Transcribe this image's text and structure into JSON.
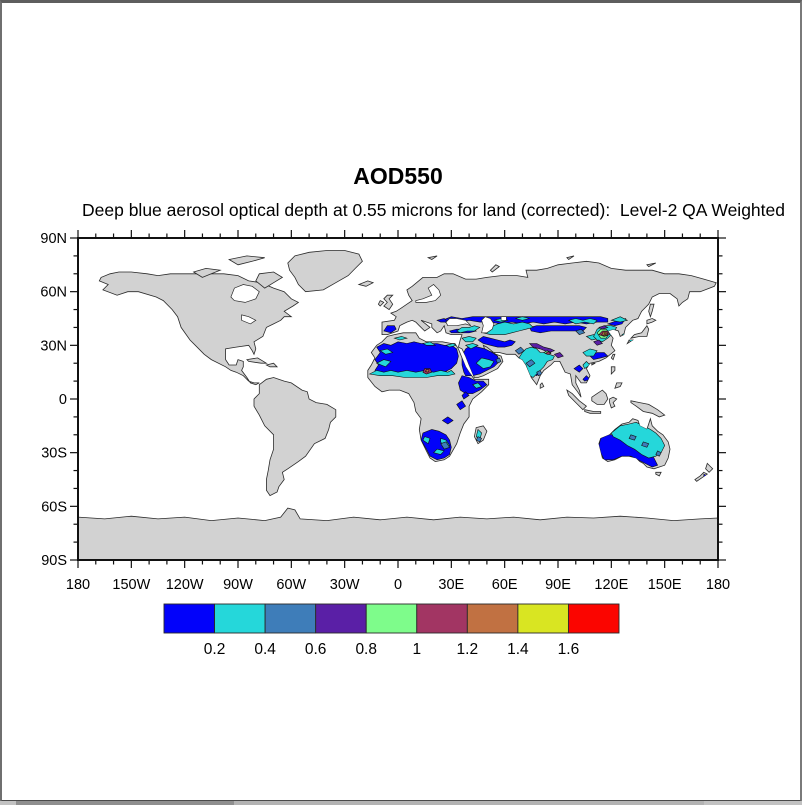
{
  "figure": {
    "title": "AOD550",
    "subtitle": "Deep blue aerosol optical depth at 0.55 microns for land (corrected):  Level-2 QA Weighted"
  },
  "chart_data": {
    "type": "heatmap",
    "title": "AOD550",
    "subtitle": "Deep blue aerosol optical depth at 0.55 microns for land (corrected):  Level-2 QA Weighted",
    "projection": "equirectangular world map, filled contours over land",
    "xlim": [
      -180,
      180
    ],
    "ylim": [
      -90,
      90
    ],
    "x_tick_labels": [
      "180",
      "150W",
      "120W",
      "90W",
      "60W",
      "30W",
      "0",
      "30E",
      "60E",
      "90E",
      "120E",
      "150E",
      "180"
    ],
    "y_tick_labels": [
      "90N",
      "60N",
      "30N",
      "0",
      "30S",
      "60S",
      "90S"
    ],
    "major_tick_deg": 30,
    "minor_tick_deg": 10,
    "grid": false,
    "colors": {
      "land": "#d2d2d2",
      "coast": "#2a2a2a",
      "ocean": "#ffffff",
      "frame": "#111111"
    },
    "colorbar": {
      "position": "bottom",
      "tick_labels": [
        "0.2",
        "0.4",
        "0.6",
        "0.8",
        "1",
        "1.2",
        "1.4",
        "1.6"
      ],
      "colors": [
        "#0202fa",
        "#25d7da",
        "#3e7db9",
        "#5a1fa6",
        "#7efc8b",
        "#a23563",
        "#c17142",
        "#d9e522",
        "#fb0500"
      ]
    },
    "patches": [
      {
        "c": 0,
        "pts": [
          -13,
          16,
          -11,
          19,
          -13,
          22,
          -10,
          26,
          -12,
          29,
          -8,
          31,
          -4,
          30,
          0,
          32,
          5,
          31,
          9,
          32,
          13,
          31,
          18,
          31,
          22,
          31,
          26,
          30,
          30,
          30,
          33,
          28,
          34,
          24,
          33,
          20,
          30,
          17,
          26,
          15,
          22,
          14,
          18,
          14,
          14,
          13,
          10,
          13,
          5,
          13,
          0,
          14,
          -5,
          14,
          -9,
          14
        ]
      },
      {
        "c": 0,
        "pts": [
          37,
          15,
          36,
          19,
          36,
          24,
          38,
          28,
          41,
          30,
          45,
          29,
          49,
          28,
          53,
          26,
          56,
          24,
          57,
          21,
          54,
          18,
          50,
          16,
          46,
          14,
          42,
          13,
          38,
          13
        ]
      },
      {
        "c": 0,
        "pts": [
          35,
          5,
          34,
          9,
          36,
          13,
          40,
          12,
          44,
          10,
          48,
          10,
          50,
          8,
          46,
          5,
          42,
          3,
          38,
          3
        ]
      },
      {
        "c": 0,
        "pts": [
          33,
          -3,
          36,
          -1,
          38,
          -4,
          35,
          -6
        ]
      },
      {
        "c": 0,
        "pts": [
          14,
          -19,
          13,
          -23,
          16,
          -28,
          18,
          -32,
          22,
          -34,
          26,
          -33,
          29,
          -31,
          30,
          -27,
          29,
          -23,
          27,
          -20,
          23,
          -18,
          19,
          -17
        ]
      },
      {
        "c": 0,
        "pts": [
          45,
          33,
          48,
          35,
          52,
          34,
          56,
          33,
          60,
          32,
          63,
          33,
          66,
          32,
          64,
          30,
          60,
          29,
          56,
          29,
          52,
          30,
          48,
          31
        ]
      },
      {
        "c": 0,
        "pts": [
          25,
          44,
          30,
          46,
          36,
          45,
          42,
          46,
          48,
          46,
          54,
          46,
          60,
          46,
          66,
          46,
          72,
          46,
          78,
          46,
          84,
          46,
          90,
          46,
          96,
          46,
          102,
          46,
          108,
          46,
          114,
          46,
          118,
          45,
          118,
          43,
          112,
          43,
          106,
          42,
          100,
          43,
          94,
          42,
          88,
          43,
          82,
          42,
          76,
          43,
          70,
          42,
          64,
          43,
          58,
          42,
          52,
          43,
          46,
          43,
          40,
          44,
          34,
          43,
          28,
          42
        ]
      },
      {
        "c": 0,
        "pts": [
          74,
          40,
          78,
          41,
          84,
          41,
          90,
          41,
          96,
          41,
          102,
          41,
          106,
          40,
          104,
          38,
          98,
          38,
          92,
          38,
          86,
          38,
          80,
          37,
          75,
          38
        ]
      },
      {
        "c": 0,
        "pts": [
          -8,
          38,
          -6,
          41,
          -2,
          41,
          -1,
          39,
          -4,
          37
        ]
      },
      {
        "c": 0,
        "pts": [
          29,
          38,
          33,
          39,
          38,
          39,
          42,
          39,
          44,
          38,
          40,
          37,
          35,
          37,
          30,
          37
        ]
      },
      {
        "c": 0,
        "pts": [
          114,
          -22,
          113,
          -26,
          114,
          -30,
          116,
          -34,
          121,
          -34,
          126,
          -32,
          131,
          -32,
          135,
          -34,
          139,
          -36,
          143,
          -38,
          146,
          -37,
          144,
          -33,
          141,
          -29,
          137,
          -26,
          133,
          -24,
          128,
          -22,
          123,
          -20,
          118,
          -20
        ]
      },
      {
        "c": 0,
        "pts": [
          70,
          24,
          73,
          26,
          76,
          27,
          75,
          24,
          72,
          22
        ]
      },
      {
        "c": 0,
        "pts": [
          75,
          15,
          78,
          17,
          80,
          15,
          78,
          13
        ]
      },
      {
        "c": 0,
        "pts": [
          99,
          17,
          102,
          19,
          104,
          17,
          102,
          15
        ]
      },
      {
        "c": 0,
        "pts": [
          104,
          11,
          106,
          13,
          108,
          11,
          105,
          10
        ]
      },
      {
        "c": 0,
        "pts": [
          118,
          42,
          124,
          44,
          128,
          45,
          126,
          42,
          122,
          41
        ]
      },
      {
        "c": 0,
        "pts": [
          22,
          44,
          26,
          45,
          28,
          43,
          24,
          43
        ]
      },
      {
        "c": 0,
        "pts": [
          172,
          -42,
          174,
          -43,
          172,
          -44
        ]
      },
      {
        "c": 0,
        "pts": [
          25,
          -12,
          28,
          -10,
          31,
          -12,
          28,
          -14
        ]
      },
      {
        "c": 0,
        "pts": [
          36,
          2,
          38,
          4,
          40,
          2,
          37,
          0
        ]
      },
      {
        "c": 0,
        "pts": [
          108,
          24,
          112,
          26,
          116,
          26,
          118,
          24,
          114,
          23,
          110,
          22
        ]
      },
      {
        "c": 1,
        "pts": [
          -16,
          14,
          -12,
          16,
          -8,
          15,
          -4,
          16,
          0,
          15,
          5,
          16,
          10,
          15,
          15,
          16,
          20,
          15,
          24,
          16,
          28,
          15,
          30,
          16,
          32,
          14,
          28,
          13,
          22,
          13,
          16,
          12,
          10,
          12,
          4,
          12,
          -3,
          13,
          -10,
          13
        ]
      },
      {
        "c": 1,
        "pts": [
          -12,
          20,
          -8,
          22,
          -4,
          21,
          -7,
          18
        ]
      },
      {
        "c": 1,
        "pts": [
          -10,
          27,
          -6,
          28,
          -3,
          26,
          -7,
          25
        ]
      },
      {
        "c": 1,
        "pts": [
          -2,
          34,
          2,
          35,
          5,
          34,
          1,
          33
        ]
      },
      {
        "c": 1,
        "pts": [
          14,
          31,
          18,
          32,
          21,
          30,
          16,
          30
        ]
      },
      {
        "c": 1,
        "pts": [
          27,
          30,
          31,
          31,
          33,
          30,
          29,
          29
        ]
      },
      {
        "c": 1,
        "pts": [
          44,
          20,
          47,
          23,
          51,
          22,
          54,
          21,
          52,
          18,
          48,
          17
        ]
      },
      {
        "c": 1,
        "pts": [
          38,
          30,
          42,
          31,
          45,
          30,
          41,
          28
        ]
      },
      {
        "c": 1,
        "pts": [
          48,
          37,
          52,
          40,
          56,
          42,
          60,
          43,
          65,
          42,
          70,
          43,
          74,
          42,
          76,
          40,
          72,
          39,
          68,
          38,
          64,
          37,
          60,
          36,
          56,
          36,
          52,
          36
        ]
      },
      {
        "c": 1,
        "pts": [
          54,
          44,
          58,
          45,
          62,
          44,
          58,
          43
        ]
      },
      {
        "c": 1,
        "pts": [
          36,
          34,
          40,
          35,
          44,
          34,
          42,
          32,
          38,
          32
        ]
      },
      {
        "c": 1,
        "pts": [
          68,
          23,
          70,
          26,
          72,
          28,
          75,
          29,
          78,
          28,
          80,
          26,
          82,
          26,
          85,
          25,
          88,
          24,
          87,
          22,
          84,
          21,
          82,
          18,
          80,
          16,
          78,
          14,
          76,
          12,
          74,
          13,
          73,
          16,
          72,
          19,
          70,
          21
        ]
      },
      {
        "c": 1,
        "pts": [
          96,
          44,
          100,
          45,
          104,
          44,
          108,
          45,
          112,
          44,
          110,
          42,
          105,
          43,
          100,
          42
        ]
      },
      {
        "c": 1,
        "pts": [
          106,
          35,
          110,
          36,
          113,
          34,
          109,
          33
        ]
      },
      {
        "c": 1,
        "pts": [
          112,
          39,
          116,
          41,
          120,
          41,
          123,
          40,
          121,
          37,
          118,
          34,
          115,
          32,
          112,
          33,
          110,
          35
        ]
      },
      {
        "c": 1,
        "pts": [
          104,
          26,
          108,
          28,
          112,
          27,
          110,
          24,
          106,
          24
        ]
      },
      {
        "c": 1,
        "pts": [
          120,
          44,
          125,
          46,
          129,
          44,
          125,
          43
        ]
      },
      {
        "c": 1,
        "pts": [
          120,
          -19,
          125,
          -15,
          130,
          -14,
          134,
          -13,
          138,
          -15,
          142,
          -17,
          145,
          -19,
          148,
          -22,
          150,
          -26,
          148,
          -30,
          145,
          -32,
          141,
          -33,
          137,
          -31,
          133,
          -28,
          129,
          -26,
          125,
          -23,
          121,
          -21
        ]
      },
      {
        "c": 1,
        "pts": [
          15,
          -21,
          18,
          -22,
          17,
          -25,
          14,
          -23
        ]
      },
      {
        "c": 1,
        "pts": [
          20,
          -30,
          24,
          -31,
          26,
          -29,
          22,
          -28
        ]
      },
      {
        "c": 1,
        "pts": [
          24,
          -22,
          27,
          -23,
          29,
          -26,
          26,
          -27,
          24,
          -24
        ]
      },
      {
        "c": 1,
        "pts": [
          45,
          -17,
          47,
          -19,
          46,
          -23,
          44,
          -21
        ]
      },
      {
        "c": 1,
        "pts": [
          33,
          38,
          36,
          40,
          40,
          40,
          43,
          41,
          46,
          40,
          43,
          38,
          39,
          38,
          35,
          37
        ]
      },
      {
        "c": 1,
        "pts": [
          66,
          45,
          70,
          46,
          74,
          45,
          70,
          44
        ]
      },
      {
        "c": 1,
        "pts": [
          126,
          36,
          128,
          37,
          130,
          36,
          127,
          35
        ]
      },
      {
        "c": 1,
        "pts": [
          130,
          33,
          132,
          34,
          133,
          33,
          131,
          32
        ]
      },
      {
        "c": 1,
        "pts": [
          104,
          19,
          106,
          21,
          108,
          19,
          105,
          17
        ]
      },
      {
        "c": 1,
        "pts": [
          42,
          8,
          45,
          9,
          47,
          7,
          44,
          6
        ]
      },
      {
        "c": 2,
        "pts": [
          24,
          -25,
          27,
          -24,
          29,
          -27,
          26,
          -28
        ]
      },
      {
        "c": 2,
        "pts": [
          45,
          -21,
          47,
          -22,
          46,
          -24,
          44,
          -23
        ]
      },
      {
        "c": 2,
        "pts": [
          72,
          20,
          75,
          22,
          77,
          20,
          74,
          18
        ]
      },
      {
        "c": 2,
        "pts": [
          78,
          15,
          80,
          16,
          81,
          14,
          79,
          13
        ]
      },
      {
        "c": 2,
        "pts": [
          55,
          22,
          57,
          23,
          58,
          21,
          56,
          20
        ]
      },
      {
        "c": 2,
        "pts": [
          131,
          -20,
          134,
          -21,
          133,
          -23,
          130,
          -22
        ]
      },
      {
        "c": 2,
        "pts": [
          138,
          -24,
          141,
          -25,
          140,
          -27,
          137,
          -26
        ]
      },
      {
        "c": 2,
        "pts": [
          146,
          -29,
          148,
          -30,
          147,
          -32,
          145,
          -31
        ]
      },
      {
        "c": 2,
        "pts": [
          66,
          27,
          69,
          29,
          71,
          27,
          68,
          25
        ]
      },
      {
        "c": 2,
        "pts": [
          100,
          38,
          103,
          39,
          105,
          37,
          102,
          36
        ]
      },
      {
        "c": 3,
        "pts": [
          74,
          31,
          78,
          31,
          82,
          29,
          86,
          28,
          88,
          27,
          85,
          26,
          80,
          28,
          76,
          29
        ]
      },
      {
        "c": 3,
        "pts": [
          88,
          25,
          91,
          26,
          93,
          24,
          90,
          23
        ]
      },
      {
        "c": 3,
        "pts": [
          110,
          32,
          113,
          33,
          115,
          31,
          112,
          30
        ]
      },
      {
        "c": 3,
        "pts": [
          113,
          40,
          116,
          41,
          118,
          40,
          115,
          39
        ]
      },
      {
        "c": 4,
        "pts": [
          112,
          37,
          114,
          39,
          117,
          39,
          119,
          37,
          117,
          34,
          114,
          34
        ]
      },
      {
        "c": 4,
        "pts": [
          82,
          26,
          84,
          27,
          86,
          26,
          84,
          25
        ]
      },
      {
        "c": 5,
        "pts": [
          113,
          36,
          115,
          38,
          118,
          38,
          119,
          36,
          116,
          35
        ]
      },
      {
        "c": 5,
        "pts": [
          14,
          15,
          15,
          17,
          18,
          17,
          19,
          15,
          16,
          14
        ]
      },
      {
        "c": 5,
        "pts": [
          83,
          25.5,
          84.5,
          26.5,
          86,
          25.5,
          84.5,
          24.8
        ]
      },
      {
        "c": 6,
        "pts": [
          114.5,
          36,
          115.5,
          37.5,
          117.5,
          37.5,
          118,
          36.3,
          116.5,
          35.3
        ]
      },
      {
        "c": 6,
        "pts": [
          15.5,
          15.3,
          16,
          16.5,
          17.5,
          16.3,
          17,
          15
        ]
      },
      {
        "c": 7,
        "pts": [
          115.8,
          36.3,
          116.4,
          37,
          117.2,
          36.5,
          116.5,
          36
        ]
      }
    ]
  }
}
